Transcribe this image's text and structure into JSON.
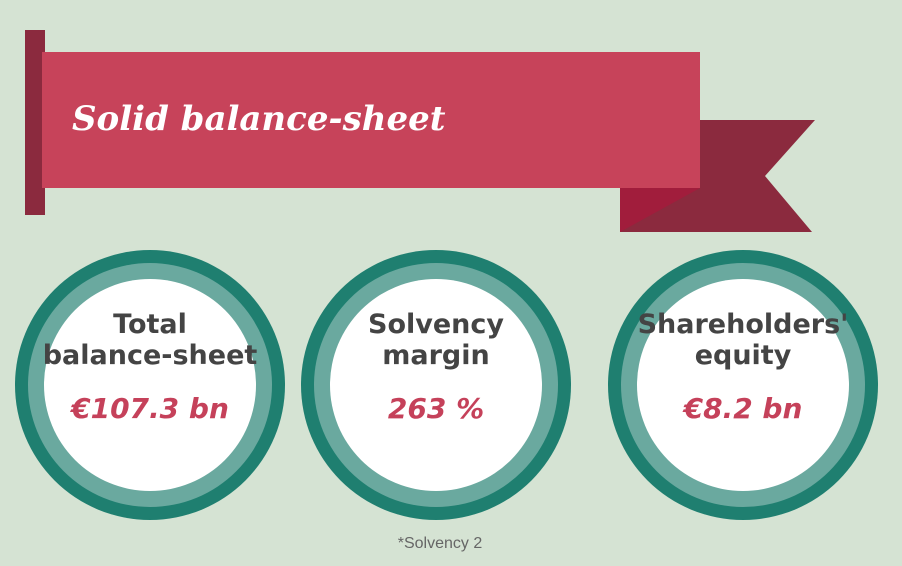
{
  "title": "Solid balance-sheet",
  "items": [
    {
      "label": [
        "Total",
        "balance-sheet"
      ],
      "value": "€107.3 bn"
    },
    {
      "label": [
        "Solvency",
        "margin"
      ],
      "value": "263 %"
    },
    {
      "label": [
        "Shareholders'",
        "equity"
      ],
      "value": "€8.2 bn"
    }
  ],
  "footnote": "*Solvency 2"
}
